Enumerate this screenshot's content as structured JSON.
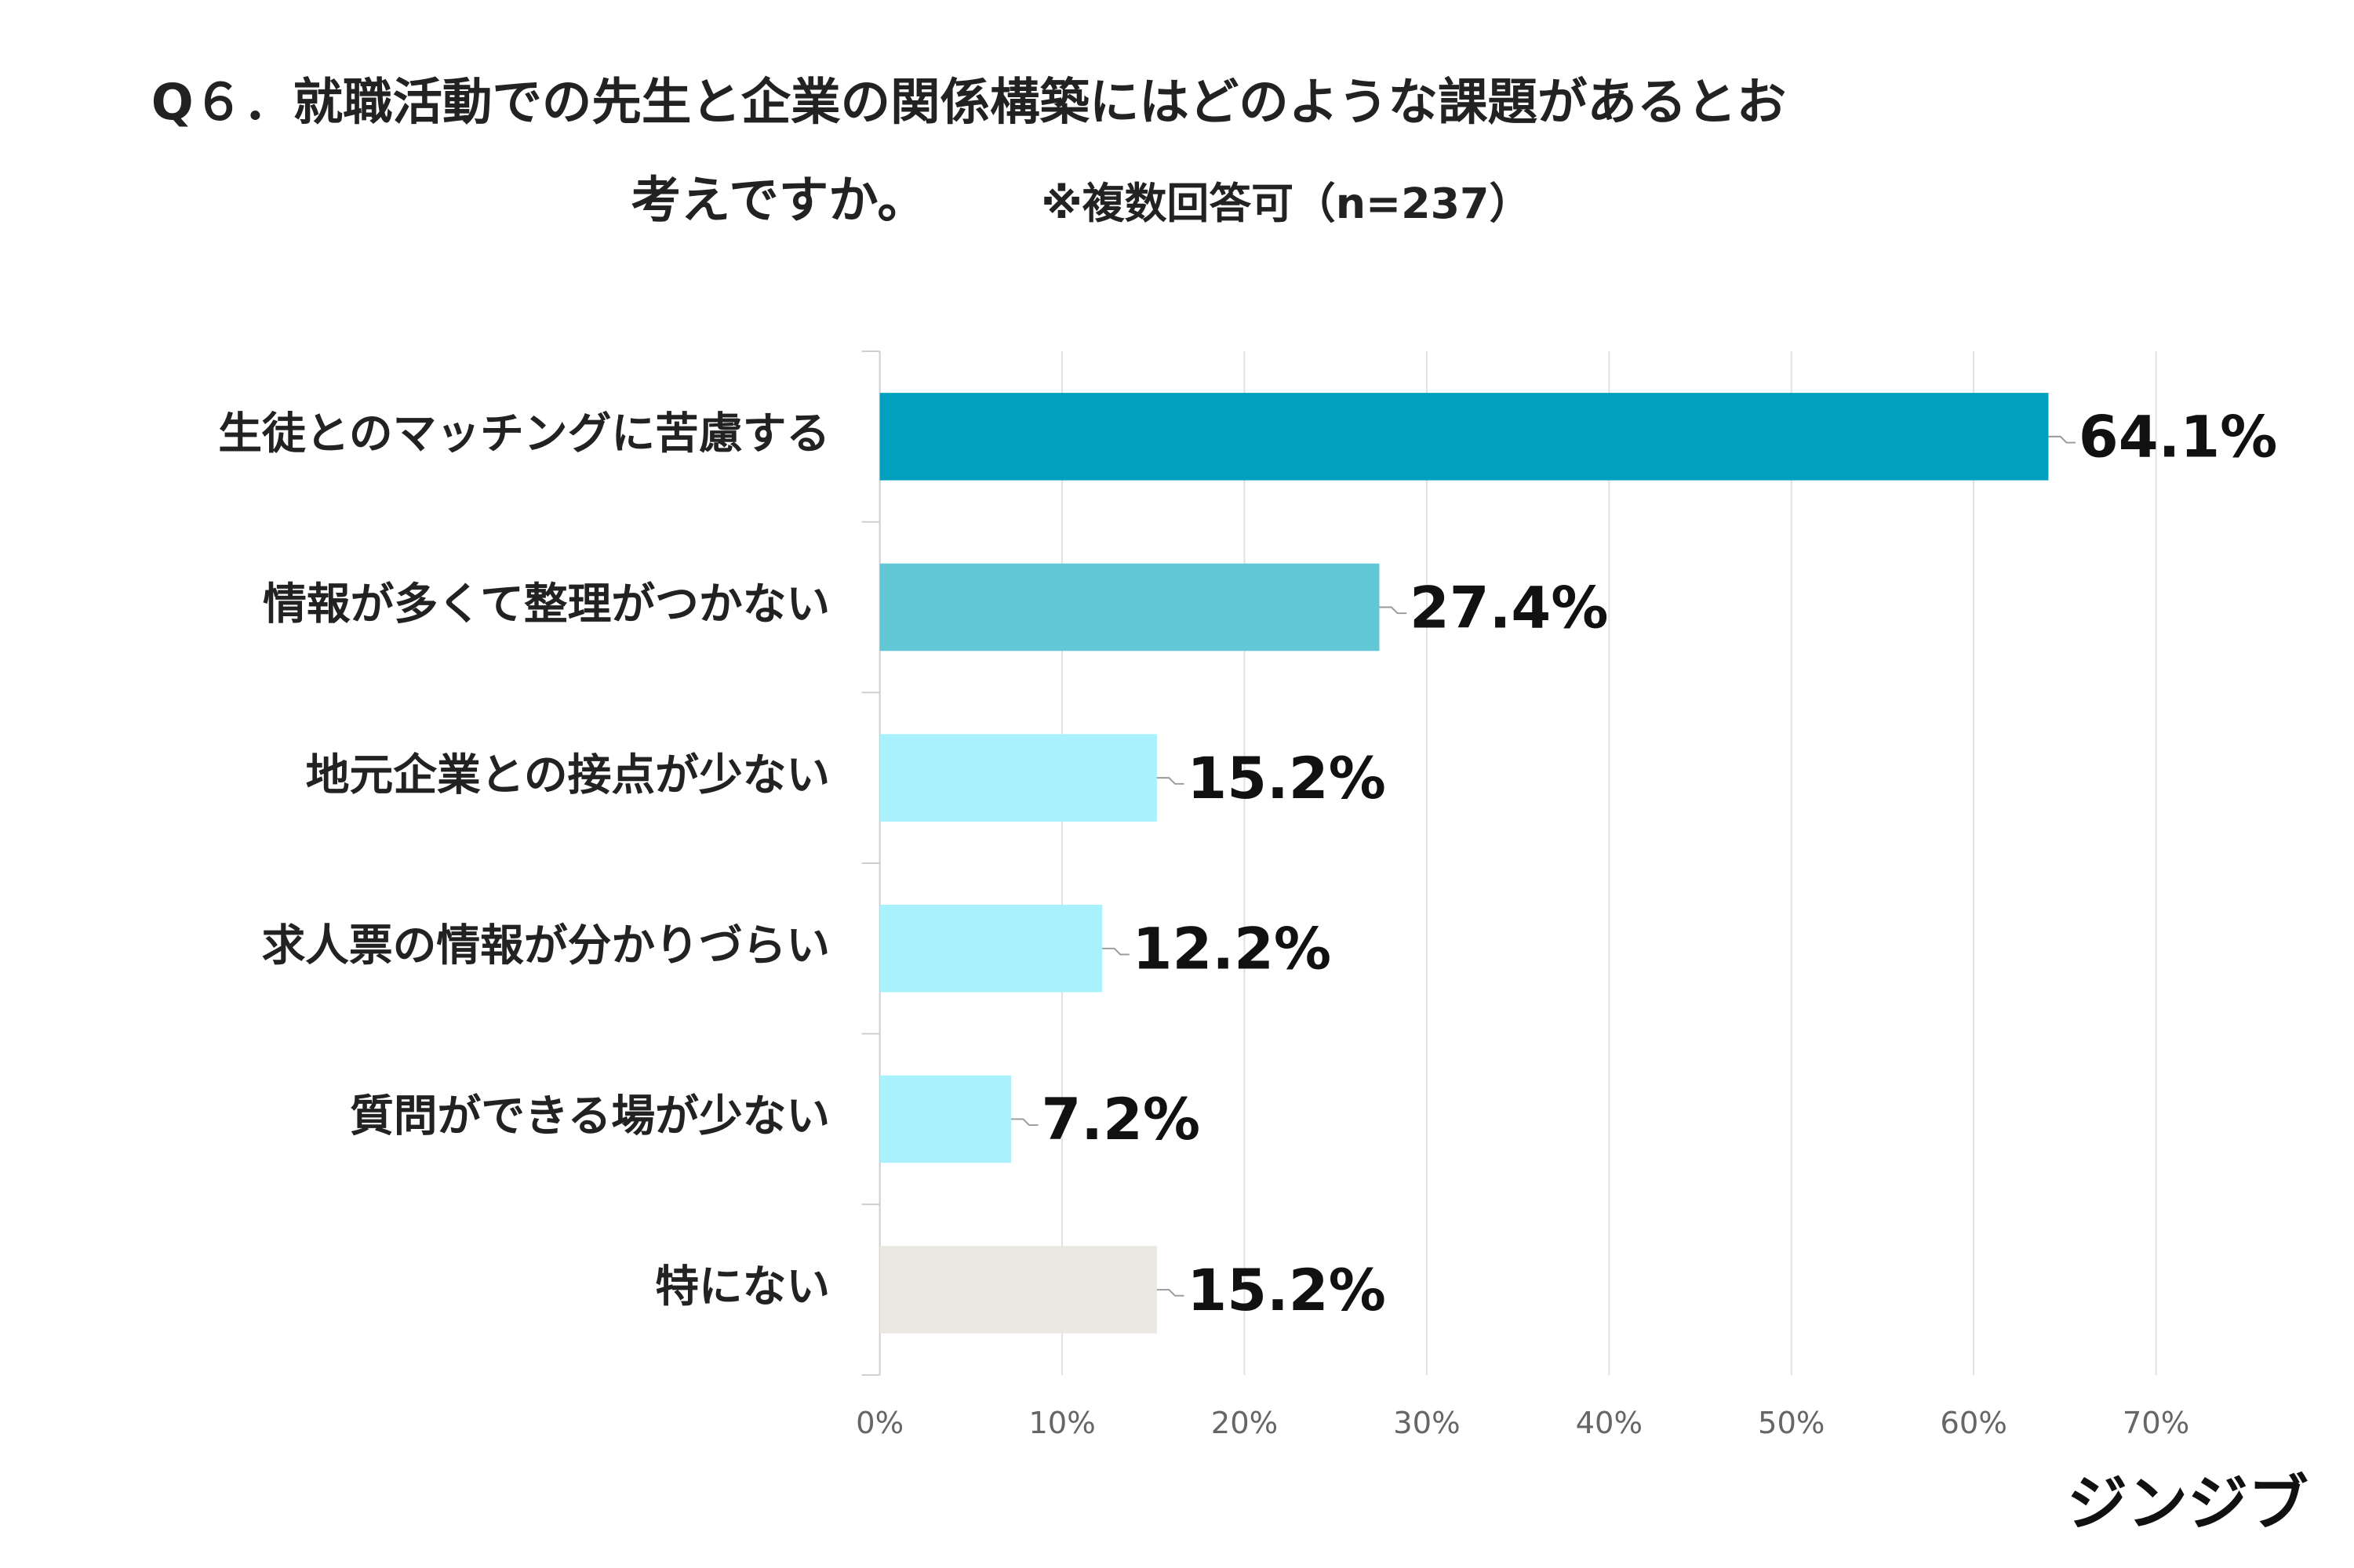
{
  "chart_data": {
    "type": "barh",
    "title": [
      "Q６．就職活動での先生と企業の関係構築にはどのような課題があるとお",
      "考えですか。"
    ],
    "subtitle": "※複数回答可（n=237）",
    "categories": [
      "生徒とのマッチングに苦慮する",
      "情報が多くて整理がつかない",
      "地元企業との接点が少ない",
      "求人票の情報が分かりづらい",
      "質問ができる場が少ない",
      "特にない"
    ],
    "values": [
      64.1,
      27.4,
      15.2,
      12.2,
      7.2,
      15.2
    ],
    "value_labels": [
      "64.1%",
      "27.4%",
      "15.2%",
      "12.2%",
      "7.2%",
      "15.2%"
    ],
    "colors": [
      "#02a0bf",
      "#62c8d6",
      "#a9f1fc",
      "#a9f1fc",
      "#a9f1fc",
      "#ebe8e3"
    ],
    "xlim": [
      0,
      70
    ],
    "xticks": [
      {
        "value": 0,
        "label": "0%"
      },
      {
        "value": 10,
        "label": "10%"
      },
      {
        "value": 20,
        "label": "20%"
      },
      {
        "value": 30,
        "label": "30%"
      },
      {
        "value": 40,
        "label": "40%"
      },
      {
        "value": 50,
        "label": "50%"
      },
      {
        "value": 60,
        "label": "60%"
      },
      {
        "value": 70,
        "label": "70%"
      }
    ],
    "grid": true,
    "source": "ジンジブ"
  }
}
